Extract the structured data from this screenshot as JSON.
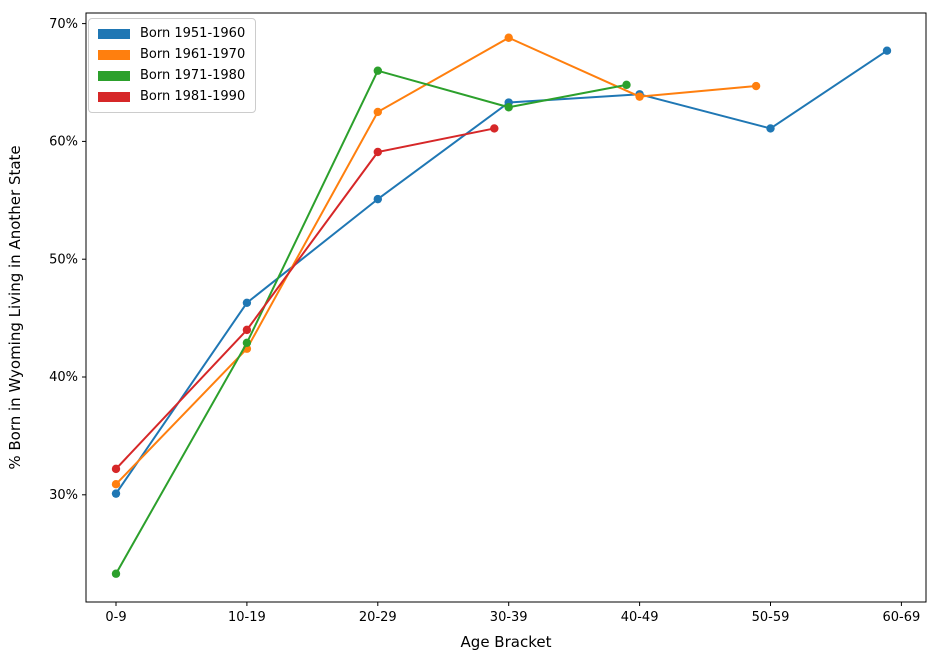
{
  "figure": {
    "background_color": "#ffffff",
    "spine_color": "#000000"
  },
  "chart_data": {
    "type": "line",
    "title": "",
    "xlabel": "Age Bracket",
    "ylabel": "% Born in Wyoming Living in Another State",
    "categories": [
      "0-9",
      "10-19",
      "20-29",
      "30-39",
      "40-49",
      "50-59",
      "60-69"
    ],
    "y_ticks": [
      {
        "value": 30,
        "label": "30%"
      },
      {
        "value": 40,
        "label": "40%"
      },
      {
        "value": 50,
        "label": "50%"
      },
      {
        "value": 60,
        "label": "60%"
      },
      {
        "value": 70,
        "label": "70%"
      }
    ],
    "ylim": [
      20.9,
      70.9
    ],
    "grid": false,
    "legend_position": "upper left",
    "marker": "circle",
    "series": [
      {
        "name": "Born 1951-1960",
        "color": "#1f77b4",
        "x": [
          0,
          1,
          2,
          3,
          4,
          5,
          5.89
        ],
        "values": [
          30.1,
          46.3,
          55.1,
          63.3,
          64.0,
          61.1,
          67.7
        ]
      },
      {
        "name": "Born 1961-1970",
        "color": "#ff7f0e",
        "x": [
          0,
          1,
          2,
          3,
          4,
          4.89
        ],
        "values": [
          30.9,
          42.4,
          62.5,
          68.8,
          63.8,
          64.7
        ]
      },
      {
        "name": "Born 1971-1980",
        "color": "#2ca02c",
        "x": [
          0,
          1,
          2,
          3,
          3.9
        ],
        "values": [
          23.3,
          42.9,
          66.0,
          62.9,
          64.8
        ]
      },
      {
        "name": "Born 1981-1990",
        "color": "#d62728",
        "x": [
          0,
          1,
          2,
          2.89
        ],
        "values": [
          32.2,
          44.0,
          59.1,
          61.1
        ]
      }
    ]
  }
}
